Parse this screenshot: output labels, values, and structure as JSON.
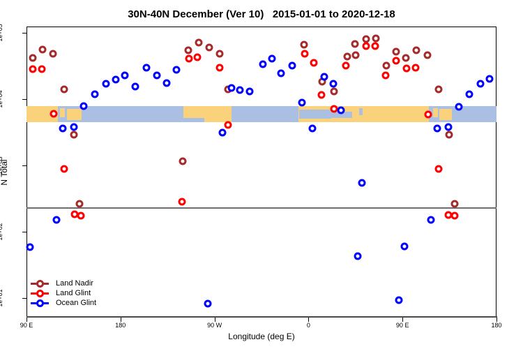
{
  "title": "30N-40N December (Ver 10)   2015-01-01 to 2020-12-18",
  "axes": {
    "x": {
      "label": "Longitude (deg E)",
      "ticks": [
        "90 E",
        "180",
        "90 W",
        "0",
        "90 E",
        "180"
      ],
      "tick_positions_deg": [
        0,
        90,
        180,
        270,
        360,
        450
      ]
    },
    "y": {
      "label": "N Total",
      "ticks": [
        "1e+05",
        "1e+04",
        "1e+03",
        "1e+02",
        "1e+01"
      ],
      "tick_values": [
        100000,
        10000,
        1000,
        100,
        10
      ]
    }
  },
  "legend": {
    "items": [
      {
        "label": "Land Nadir",
        "color": "#A52A2A"
      },
      {
        "label": "Land Glint",
        "color": "#FF0000"
      },
      {
        "label": "Ocean Glint",
        "color": "#0000FF"
      }
    ]
  },
  "colors": {
    "land_band": "#FAD27C",
    "ocean_band": "#AABFE2",
    "ref_line": "#6E6E6E"
  },
  "chart_data": {
    "type": "scatter",
    "title": "30N-40N December (Ver 10)   2015-01-01 to 2020-12-18",
    "xlabel": "Longitude (deg E)",
    "ylabel": "N Total",
    "y_scale": "log",
    "ylim": [
      5,
      130000
    ],
    "x_axis_note": "degrees along wrapped axis: 0 = 90E, 90 = 180, 180 = 90W, 270 = 0, 360 = 90E, 450 = 180",
    "xlim_deg": [
      0,
      450
    ],
    "ref_line_value": 230,
    "series": [
      {
        "name": "Land Nadir",
        "color": "#A52A2A",
        "points": [
          [
            15.4,
            56000
          ],
          [
            25.4,
            48000
          ],
          [
            6,
            42000
          ],
          [
            36.1,
            14000
          ],
          [
            164.9,
            71000
          ],
          [
            154.9,
            55000
          ],
          [
            174.9,
            60000
          ],
          [
            185,
            48000
          ],
          [
            193,
            14000
          ],
          [
            45.4,
            2900
          ],
          [
            265.7,
            66000
          ],
          [
            283.1,
            18500
          ],
          [
            294.4,
            13000
          ],
          [
            325.2,
            81000
          ],
          [
            334.5,
            83000
          ],
          [
            314.5,
            68000
          ],
          [
            307.1,
            44000
          ],
          [
            315.1,
            46500
          ],
          [
            353.9,
            52000
          ],
          [
            363.2,
            42000
          ],
          [
            373.2,
            55000
          ],
          [
            383.9,
            46000
          ],
          [
            344.5,
            32000
          ],
          [
            394.6,
            14000
          ],
          [
            404.6,
            2900
          ],
          [
            50.7,
            265
          ],
          [
            149.5,
            1150
          ],
          [
            410,
            265
          ]
        ]
      },
      {
        "name": "Land Glint",
        "color": "#FF0000",
        "points": [
          [
            6,
            28500
          ],
          [
            14.7,
            28500
          ],
          [
            163.6,
            43000
          ],
          [
            155.6,
            41000
          ],
          [
            185,
            30000
          ],
          [
            266.4,
            48000
          ],
          [
            275.1,
            35000
          ],
          [
            282.4,
            11500
          ],
          [
            305.8,
            32000
          ],
          [
            325.2,
            63000
          ],
          [
            333.8,
            63000
          ],
          [
            353.9,
            38000
          ],
          [
            363.9,
            29000
          ],
          [
            372.5,
            30000
          ],
          [
            343.8,
            23000
          ],
          [
            26,
            6000
          ],
          [
            193,
            4050
          ],
          [
            294.4,
            7100
          ],
          [
            384.6,
            5850
          ],
          [
            36.1,
            880
          ],
          [
            46.1,
            185
          ],
          [
            52.1,
            176
          ],
          [
            148.9,
            285
          ],
          [
            394.6,
            880
          ],
          [
            403.9,
            180
          ],
          [
            410,
            176
          ]
        ]
      },
      {
        "name": "Ocean Glint",
        "color": "#0000FF",
        "points": [
          [
            65.4,
            11800
          ],
          [
            76.1,
            17000
          ],
          [
            85.5,
            19800
          ],
          [
            94.1,
            23000
          ],
          [
            104.2,
            15500
          ],
          [
            114.8,
            30000
          ],
          [
            124.9,
            23000
          ],
          [
            134.2,
            17400
          ],
          [
            143.5,
            28000
          ],
          [
            196.3,
            14700
          ],
          [
            204.3,
            13700
          ],
          [
            213.6,
            13100
          ],
          [
            226.3,
            33500
          ],
          [
            235,
            41000
          ],
          [
            243.7,
            24500
          ],
          [
            254.4,
            32000
          ],
          [
            285.1,
            21700
          ],
          [
            293.8,
            17000
          ],
          [
            434.6,
            17000
          ],
          [
            443.3,
            20200
          ],
          [
            423.9,
            11800
          ],
          [
            263.7,
            8800
          ],
          [
            54.7,
            7900
          ],
          [
            413.9,
            7700
          ],
          [
            34.7,
            3650
          ],
          [
            45.4,
            3750
          ],
          [
            393.2,
            3650
          ],
          [
            403.9,
            3750
          ],
          [
            273.7,
            3650
          ],
          [
            187.6,
            3100
          ],
          [
            301.1,
            6800
          ],
          [
            28.7,
            150
          ],
          [
            387.2,
            150
          ],
          [
            3.3,
            59
          ],
          [
            361.9,
            60
          ],
          [
            321.2,
            545
          ],
          [
            317.1,
            43
          ],
          [
            173.6,
            8.3
          ],
          [
            356.5,
            9.2
          ]
        ]
      }
    ],
    "land_ocean_strip": {
      "description": "map strip across plot showing land (tan) vs ocean (blue) in the 30N-40N band",
      "top_value": 7800,
      "bottom_value": 4500,
      "base": "ocean",
      "land_segments_deg": [
        [
          0,
          30
        ],
        [
          150,
          196
        ],
        [
          260.5,
          385
        ]
      ],
      "land_patches_deg": [
        [
          32,
          37,
          0.1,
          0.7
        ],
        [
          38.5,
          53,
          0.15,
          0.85
        ],
        [
          389,
          394,
          0.1,
          0.7
        ],
        [
          395.5,
          407,
          0.15,
          0.85
        ]
      ],
      "ocean_patches_deg": [
        [
          148,
          170,
          0.72,
          1
        ],
        [
          261,
          292,
          0.2,
          0.8
        ],
        [
          292,
          312,
          0.35,
          0.75
        ],
        [
          318.5,
          322,
          0.1,
          0.55
        ]
      ]
    }
  }
}
